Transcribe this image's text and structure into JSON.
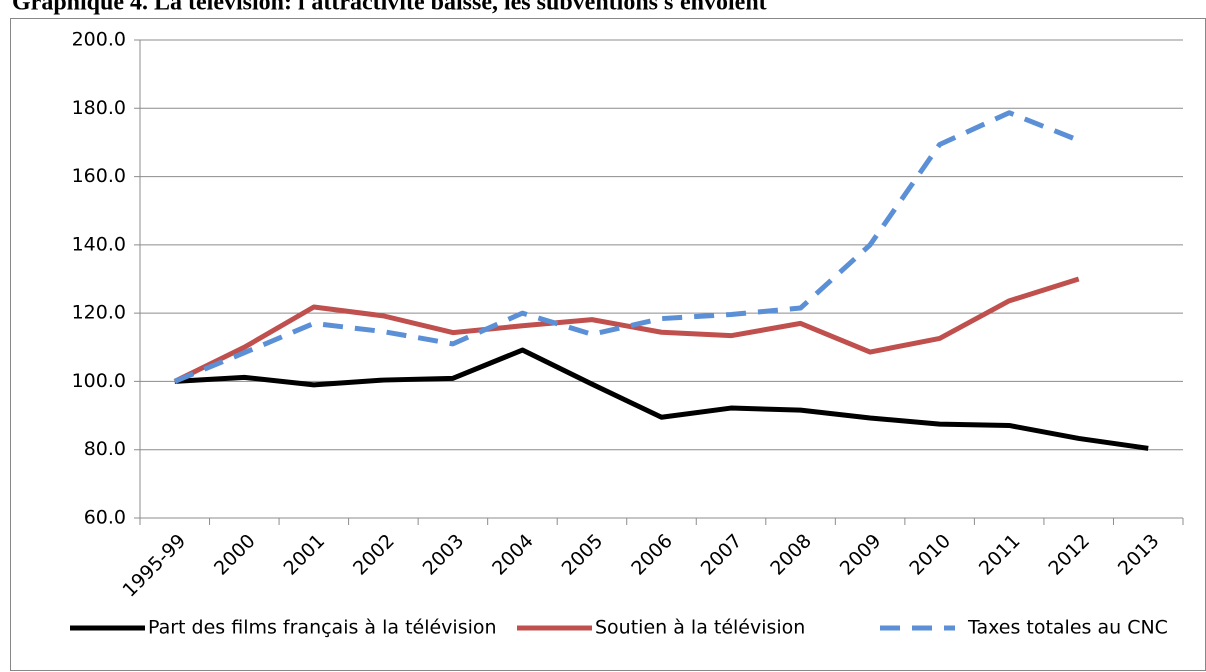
{
  "chart_data": {
    "type": "line",
    "title": "Graphique 4. La télévision: l'attractivité baisse, les subventions s'envolent",
    "categories": [
      "1995-99",
      "2000",
      "2001",
      "2002",
      "2003",
      "2004",
      "2005",
      "2006",
      "2007",
      "2008",
      "2009",
      "2010",
      "2011",
      "2012",
      "2013"
    ],
    "series": [
      {
        "name": "Part des films français à la télévision",
        "color": "#000000",
        "dash": false,
        "values": [
          100,
          101.2,
          99,
          100.4,
          100.9,
          109.2,
          99.2,
          89.5,
          92.2,
          91.6,
          89.3,
          87.5,
          87.1,
          83.3,
          80.4
        ]
      },
      {
        "name": "Soutien à la télévision",
        "color": "#c0504d",
        "dash": false,
        "values": [
          100,
          110,
          121.8,
          119.2,
          114.3,
          116.3,
          118.1,
          114.4,
          113.4,
          117,
          108.6,
          112.6,
          123.6,
          130,
          null
        ]
      },
      {
        "name": "Taxes totales au CNC",
        "color": "#5b8fd6",
        "dash": true,
        "values": [
          100,
          108.4,
          117,
          114.6,
          111,
          120,
          113.8,
          118.4,
          119.6,
          121.5,
          140,
          169.4,
          178.7,
          170.6,
          null
        ]
      }
    ],
    "ylim": [
      60,
      200
    ],
    "yticks": [
      {
        "value": 60,
        "label": "60.0"
      },
      {
        "value": 80,
        "label": "80.0"
      },
      {
        "value": 100,
        "label": "100.0"
      },
      {
        "value": 120,
        "label": "120.0"
      },
      {
        "value": 140,
        "label": "140.0"
      },
      {
        "value": 160,
        "label": "160.0"
      },
      {
        "value": 180,
        "label": "180.0"
      },
      {
        "value": 200,
        "label": "200.0"
      }
    ],
    "grid": true,
    "legend": "bottom"
  }
}
